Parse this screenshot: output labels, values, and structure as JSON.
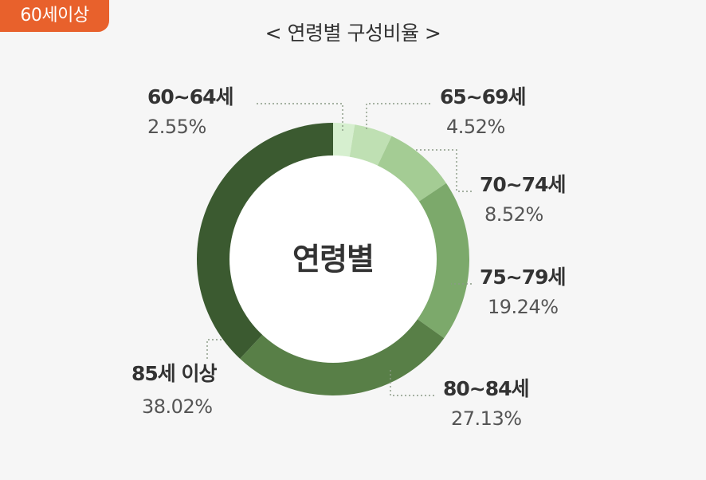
{
  "badge": "60세이상",
  "title": "< 연령별 구성비율 >",
  "chart_data": {
    "type": "pie",
    "center_label": "연령별",
    "categories": [
      "60~64세",
      "65~69세",
      "70~74세",
      "75~79세",
      "80~84세",
      "85세 이상"
    ],
    "values": [
      2.55,
      4.52,
      8.52,
      19.24,
      27.13,
      38.02
    ],
    "value_labels": [
      "2.55%",
      "4.52%",
      "8.52%",
      "19.24%",
      "27.13%",
      "38.02%"
    ],
    "colors": [
      "#d6efcf",
      "#bfe0b3",
      "#a4cc94",
      "#7ca96b",
      "#587f47",
      "#3b5a30"
    ],
    "style": "donut",
    "legend": "none"
  }
}
